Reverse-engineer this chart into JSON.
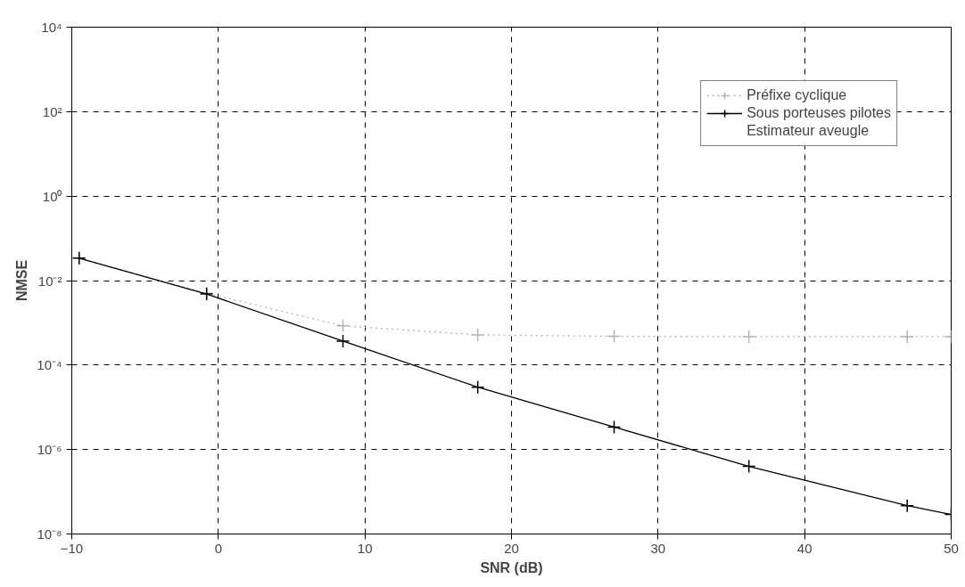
{
  "chart_data": {
    "type": "line",
    "xlabel": "SNR (dB)",
    "ylabel": "NMSE",
    "log": "y",
    "xlim": [
      -10,
      50
    ],
    "xticks": [
      -10,
      0,
      10,
      20,
      30,
      40,
      50
    ],
    "ylim": [
      1e-08,
      10000
    ],
    "yticks": [
      {
        "value": 1e-08,
        "label": "10⁻⁸"
      },
      {
        "value": 1e-06,
        "label": "10⁻⁶"
      },
      {
        "value": 0.0001,
        "label": "10⁻⁴"
      },
      {
        "value": 0.01,
        "label": "10⁻²"
      },
      {
        "value": 1,
        "label": "10⁰"
      },
      {
        "value": 100,
        "label": "10²"
      },
      {
        "value": 10000,
        "label": "10⁴"
      }
    ],
    "grid": true,
    "legend": "top right",
    "marker": "cross",
    "series": [
      {
        "name": "Préfixe cyclique",
        "color": "#b4b4b4",
        "line_style": "dotted",
        "x": [
          -9.5,
          -0.8,
          8.5,
          17.7,
          27,
          36.2,
          47,
          50
        ],
        "values": [
          0.034,
          0.005,
          0.00085,
          0.00052,
          0.00048,
          0.00047,
          0.00047,
          0.00047
        ]
      },
      {
        "name": "Sous porteuses pilotes",
        "color": "#000000",
        "line_style": "solid",
        "x": [
          -9.5,
          -0.8,
          8.5,
          17.7,
          27,
          36.2,
          47,
          50
        ],
        "values": [
          0.034,
          0.0048,
          0.00037,
          3e-05,
          3.4e-06,
          4e-07,
          4.7e-08,
          2.9e-08
        ]
      },
      {
        "name": "Estimateur aveugle"
      }
    ]
  }
}
